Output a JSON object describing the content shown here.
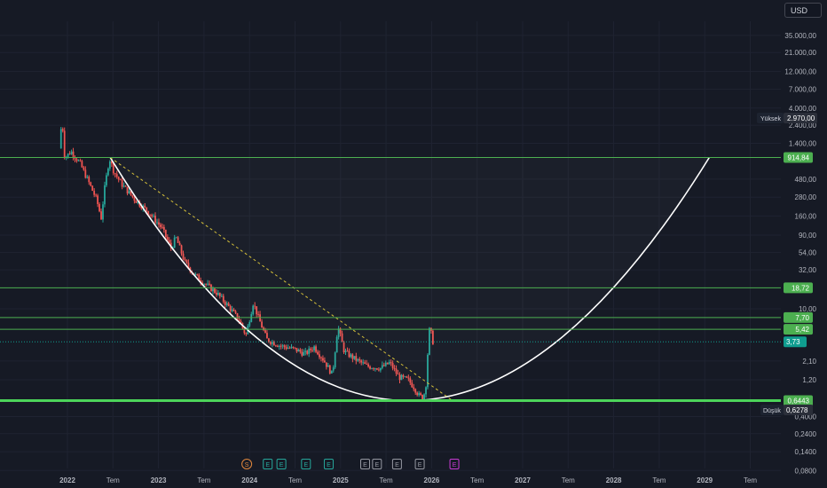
{
  "currency": "USD",
  "colors": {
    "background": "#161a25",
    "grid": "#1f2331",
    "up": "#26a69a",
    "down": "#ef5350",
    "level": "#4caf50",
    "level_strong": "#4cd45a",
    "curve": "#ffffff",
    "trendline": "#d6c13a",
    "axis_text": "#b2b5be",
    "price_chip": "#0f9d8f",
    "marker_dividend": "#e1873c",
    "marker_earnings_green": "#26a69a",
    "marker_earnings_gray": "#9598a1",
    "marker_earnings_future": "#c73ad3"
  },
  "chart_data": {
    "type": "candlestick",
    "y_scale": "log",
    "x_range": [
      "2021-10",
      "2030-01"
    ],
    "y_range": [
      0.055,
      90000
    ],
    "x_tick_labels": [
      {
        "label": "2022",
        "date": 2022.0
      },
      {
        "label": "Tem",
        "date": 2022.5
      },
      {
        "label": "2023",
        "date": 2023.0
      },
      {
        "label": "Tem",
        "date": 2023.5
      },
      {
        "label": "2024",
        "date": 2024.0
      },
      {
        "label": "Tem",
        "date": 2024.5
      },
      {
        "label": "2025",
        "date": 2025.0
      },
      {
        "label": "Tem",
        "date": 2025.5
      },
      {
        "label": "2026",
        "date": 2026.0
      },
      {
        "label": "Tem",
        "date": 2026.5
      },
      {
        "label": "2027",
        "date": 2027.0
      },
      {
        "label": "Tem",
        "date": 2027.5
      },
      {
        "label": "2028",
        "date": 2028.0
      },
      {
        "label": "Tem",
        "date": 2028.5
      },
      {
        "label": "2029",
        "date": 2029.0
      },
      {
        "label": "Tem",
        "date": 2029.5
      }
    ],
    "y_tick_labels": [
      {
        "label": "35.000,00",
        "value": 35000
      },
      {
        "label": "21.000,00",
        "value": 21000
      },
      {
        "label": "12.000,00",
        "value": 12000
      },
      {
        "label": "7.000,00",
        "value": 7000
      },
      {
        "label": "4.000,00",
        "value": 4000
      },
      {
        "label": "2.400,00",
        "value": 2400
      },
      {
        "label": "1.400,00",
        "value": 1400
      },
      {
        "label": "480,00",
        "value": 480
      },
      {
        "label": "280,00",
        "value": 280
      },
      {
        "label": "160,00",
        "value": 160
      },
      {
        "label": "90,00",
        "value": 90
      },
      {
        "label": "54,00",
        "value": 54
      },
      {
        "label": "32,00",
        "value": 32
      },
      {
        "label": "10,00",
        "value": 10
      },
      {
        "label": "2,10",
        "value": 2.1
      },
      {
        "label": "1,20",
        "value": 1.2
      },
      {
        "label": "0,4000",
        "value": 0.4
      },
      {
        "label": "0,2400",
        "value": 0.24
      },
      {
        "label": "0,1400",
        "value": 0.14
      },
      {
        "label": "0,0800",
        "value": 0.08
      }
    ],
    "horizontal_levels": [
      {
        "value": 914.84,
        "label": "914,84"
      },
      {
        "value": 18.72,
        "label": "18,72"
      },
      {
        "value": 7.7,
        "label": "7,70"
      },
      {
        "value": 5.42,
        "label": "5,42"
      },
      {
        "value": 0.6443,
        "label": "0,6443",
        "strong": true
      }
    ],
    "current_price": {
      "value": 3.73,
      "label": "3,73"
    },
    "high": {
      "tag": "Yüksek",
      "value": 2970,
      "label": "2.970,00"
    },
    "low": {
      "tag": "Düşük",
      "value": 0.6278,
      "label": "0,6278"
    },
    "cup_curve": {
      "start": {
        "date": 2022.47,
        "value": 915
      },
      "bottom": {
        "date": 2025.75,
        "value": 0.6443
      },
      "end": {
        "date": 2029.05,
        "value": 915
      }
    },
    "trendline": {
      "start": {
        "date": 2022.47,
        "value": 915
      },
      "end": {
        "date": 2026.23,
        "value": 0.6443
      },
      "style": "dashed"
    },
    "ohlc_path": [
      {
        "date": 2021.92,
        "value": 1200
      },
      {
        "date": 2021.95,
        "value": 2970
      },
      {
        "date": 2021.98,
        "value": 900
      },
      {
        "date": 2022.05,
        "value": 1100
      },
      {
        "date": 2022.15,
        "value": 760
      },
      {
        "date": 2022.25,
        "value": 420
      },
      {
        "date": 2022.33,
        "value": 260
      },
      {
        "date": 2022.38,
        "value": 150
      },
      {
        "date": 2022.42,
        "value": 380
      },
      {
        "date": 2022.47,
        "value": 900
      },
      {
        "date": 2022.52,
        "value": 600
      },
      {
        "date": 2022.6,
        "value": 420
      },
      {
        "date": 2022.75,
        "value": 260
      },
      {
        "date": 2022.9,
        "value": 180
      },
      {
        "date": 2023.05,
        "value": 110
      },
      {
        "date": 2023.15,
        "value": 60
      },
      {
        "date": 2023.2,
        "value": 85
      },
      {
        "date": 2023.3,
        "value": 40
      },
      {
        "date": 2023.4,
        "value": 28
      },
      {
        "date": 2023.5,
        "value": 22
      },
      {
        "date": 2023.65,
        "value": 16
      },
      {
        "date": 2023.8,
        "value": 10
      },
      {
        "date": 2023.9,
        "value": 7
      },
      {
        "date": 2023.97,
        "value": 4.5
      },
      {
        "date": 2024.05,
        "value": 12
      },
      {
        "date": 2024.12,
        "value": 7
      },
      {
        "date": 2024.2,
        "value": 4
      },
      {
        "date": 2024.35,
        "value": 3.3
      },
      {
        "date": 2024.5,
        "value": 3
      },
      {
        "date": 2024.62,
        "value": 2.6
      },
      {
        "date": 2024.72,
        "value": 3.2
      },
      {
        "date": 2024.82,
        "value": 2.2
      },
      {
        "date": 2024.92,
        "value": 1.4
      },
      {
        "date": 2024.98,
        "value": 6
      },
      {
        "date": 2025.05,
        "value": 2.8
      },
      {
        "date": 2025.15,
        "value": 2.3
      },
      {
        "date": 2025.3,
        "value": 1.8
      },
      {
        "date": 2025.45,
        "value": 1.7
      },
      {
        "date": 2025.55,
        "value": 2
      },
      {
        "date": 2025.65,
        "value": 1.3
      },
      {
        "date": 2025.75,
        "value": 1.2
      },
      {
        "date": 2025.82,
        "value": 0.95
      },
      {
        "date": 2025.87,
        "value": 0.75
      },
      {
        "date": 2025.92,
        "value": 0.7
      },
      {
        "date": 2025.95,
        "value": 1.1
      },
      {
        "date": 2025.97,
        "value": 3.1
      },
      {
        "date": 2025.99,
        "value": 6.1
      },
      {
        "date": 2026.02,
        "value": 3.73
      }
    ],
    "event_markers": [
      {
        "glyph": "S",
        "date": 2023.97,
        "kind": "dividend"
      },
      {
        "glyph": "E",
        "date": 2024.2,
        "kind": "earnings_green"
      },
      {
        "glyph": "E",
        "date": 2024.35,
        "kind": "earnings_green"
      },
      {
        "glyph": "E",
        "date": 2024.62,
        "kind": "earnings_green"
      },
      {
        "glyph": "E",
        "date": 2024.87,
        "kind": "earnings_green"
      },
      {
        "glyph": "E",
        "date": 2025.27,
        "kind": "earnings_gray"
      },
      {
        "glyph": "E",
        "date": 2025.4,
        "kind": "earnings_gray"
      },
      {
        "glyph": "E",
        "date": 2025.62,
        "kind": "earnings_gray"
      },
      {
        "glyph": "E",
        "date": 2025.87,
        "kind": "earnings_gray"
      },
      {
        "glyph": "E",
        "date": 2026.25,
        "kind": "earnings_future"
      }
    ]
  }
}
